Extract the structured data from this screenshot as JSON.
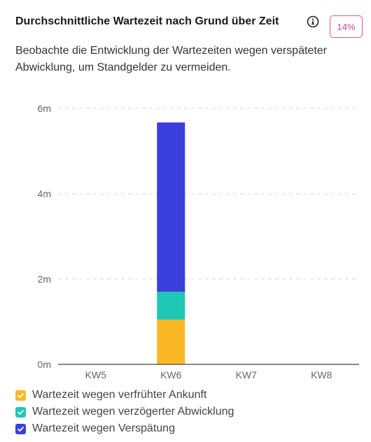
{
  "header": {
    "title": "Durchschnittliche Wartezeit nach Grund über Zeit",
    "badge": "14%",
    "info_icon": "info-circle-icon"
  },
  "subtitle": "Beobachte die Entwicklung der Wartezeiten wegen verspäteter Abwicklung, um Standgelder zu vermeiden.",
  "chart_data": {
    "type": "bar",
    "stacked": true,
    "title": "",
    "xlabel": "",
    "ylabel": "",
    "categories": [
      "KW5",
      "KW6",
      "KW7",
      "KW8"
    ],
    "y_unit": "m",
    "ylim": [
      0,
      6
    ],
    "yticks": [
      0,
      2,
      4,
      6
    ],
    "ytick_labels": [
      "0m",
      "2m",
      "4m",
      "6m"
    ],
    "grid": "horizontal dashed",
    "legend_position": "bottom",
    "series": [
      {
        "name": "Wartezeit wegen verfrühter Ankunft",
        "color": "#fbb825",
        "values": [
          0,
          1.05,
          0,
          0
        ]
      },
      {
        "name": "Wartezeit wegen verzögerter Abwicklung",
        "color": "#1ec8b4",
        "values": [
          0,
          0.65,
          0,
          0
        ]
      },
      {
        "name": "Wartezeit wegen Verspätung",
        "color": "#3b3fdd",
        "values": [
          0,
          3.97,
          0,
          0
        ]
      }
    ]
  }
}
